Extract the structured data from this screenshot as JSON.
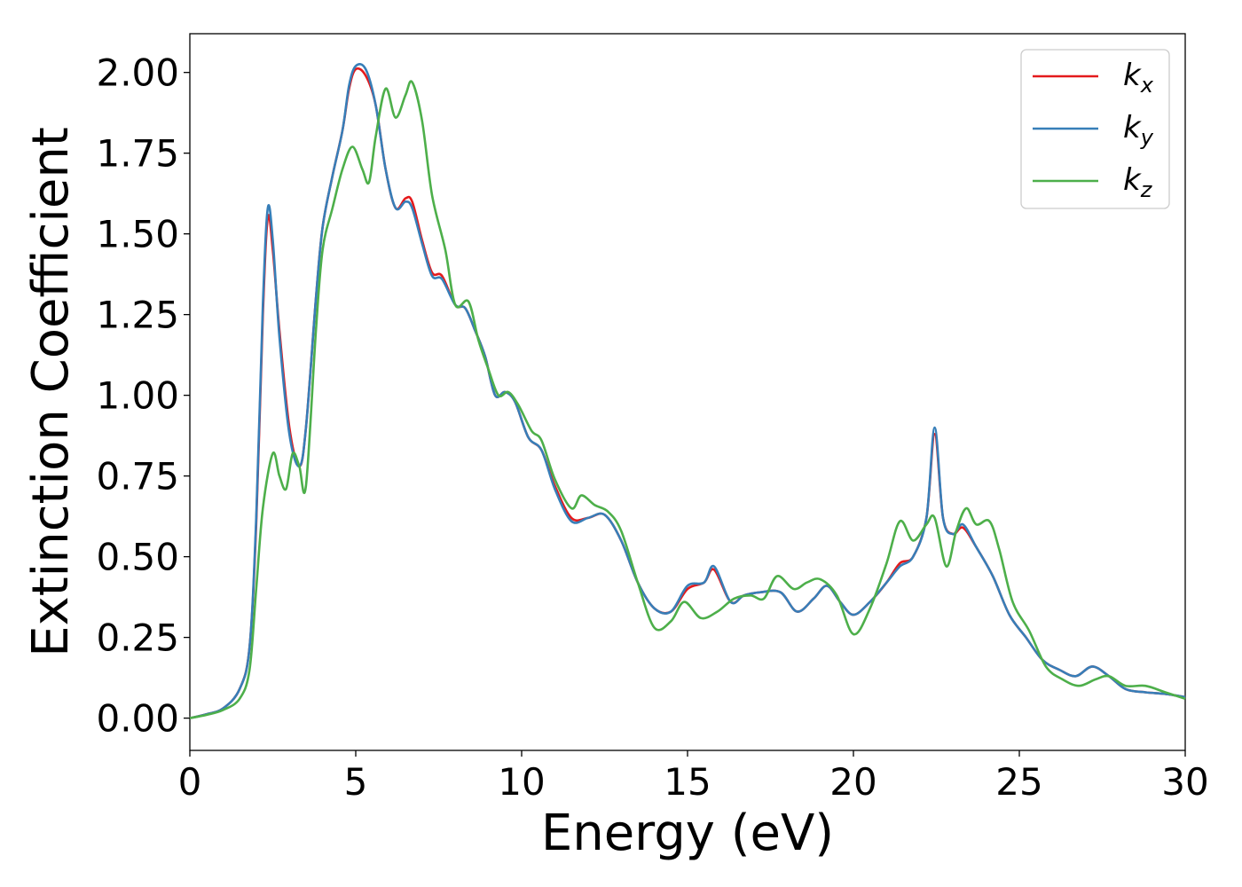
{
  "chart_data": {
    "type": "line",
    "title": "",
    "xlabel": "Energy (eV)",
    "ylabel": "Extinction Coefficient",
    "xlim": [
      0,
      30
    ],
    "ylim": [
      -0.1,
      2.12
    ],
    "xticks": [
      "0",
      "5",
      "10",
      "15",
      "20",
      "25",
      "30"
    ],
    "xtick_values": [
      0,
      5,
      10,
      15,
      20,
      25,
      30
    ],
    "yticks": [
      "0.00",
      "0.25",
      "0.50",
      "0.75",
      "1.00",
      "1.25",
      "1.50",
      "1.75",
      "2.00"
    ],
    "ytick_values": [
      0,
      0.25,
      0.5,
      0.75,
      1.0,
      1.25,
      1.5,
      1.75,
      2.0
    ],
    "grid": false,
    "legend_position": "top-right",
    "series": [
      {
        "name": "k_x",
        "label_main": "k",
        "label_sub": "x",
        "color": "#e41a1c",
        "points": [
          [
            0,
            0
          ],
          [
            0.5,
            0.012
          ],
          [
            1.0,
            0.03
          ],
          [
            1.5,
            0.09
          ],
          [
            1.8,
            0.22
          ],
          [
            2.0,
            0.6
          ],
          [
            2.2,
            1.25
          ],
          [
            2.35,
            1.55
          ],
          [
            2.5,
            1.45
          ],
          [
            2.7,
            1.2
          ],
          [
            3.0,
            0.9
          ],
          [
            3.3,
            0.78
          ],
          [
            3.5,
            0.9
          ],
          [
            3.8,
            1.3
          ],
          [
            4.0,
            1.52
          ],
          [
            4.3,
            1.68
          ],
          [
            4.6,
            1.82
          ],
          [
            4.8,
            1.95
          ],
          [
            5.0,
            2.01
          ],
          [
            5.3,
            1.99
          ],
          [
            5.6,
            1.9
          ],
          [
            5.9,
            1.7
          ],
          [
            6.2,
            1.58
          ],
          [
            6.5,
            1.61
          ],
          [
            6.7,
            1.6
          ],
          [
            7.0,
            1.48
          ],
          [
            7.3,
            1.38
          ],
          [
            7.6,
            1.37
          ],
          [
            8.0,
            1.28
          ],
          [
            8.3,
            1.27
          ],
          [
            8.6,
            1.2
          ],
          [
            8.9,
            1.12
          ],
          [
            9.2,
            1.0
          ],
          [
            9.5,
            1.01
          ],
          [
            9.8,
            0.98
          ],
          [
            10.2,
            0.87
          ],
          [
            10.6,
            0.83
          ],
          [
            11.0,
            0.72
          ],
          [
            11.5,
            0.62
          ],
          [
            12.0,
            0.62
          ],
          [
            12.5,
            0.63
          ],
          [
            13.0,
            0.55
          ],
          [
            13.5,
            0.42
          ],
          [
            14.0,
            0.34
          ],
          [
            14.5,
            0.33
          ],
          [
            15.0,
            0.4
          ],
          [
            15.5,
            0.42
          ],
          [
            15.8,
            0.46
          ],
          [
            16.3,
            0.36
          ],
          [
            16.7,
            0.38
          ],
          [
            17.2,
            0.39
          ],
          [
            17.8,
            0.39
          ],
          [
            18.3,
            0.33
          ],
          [
            18.8,
            0.37
          ],
          [
            19.2,
            0.41
          ],
          [
            19.6,
            0.36
          ],
          [
            20.0,
            0.32
          ],
          [
            20.5,
            0.36
          ],
          [
            21.0,
            0.42
          ],
          [
            21.4,
            0.48
          ],
          [
            21.8,
            0.5
          ],
          [
            22.2,
            0.62
          ],
          [
            22.45,
            0.88
          ],
          [
            22.7,
            0.62
          ],
          [
            23.0,
            0.57
          ],
          [
            23.3,
            0.59
          ],
          [
            23.7,
            0.53
          ],
          [
            24.2,
            0.44
          ],
          [
            24.7,
            0.32
          ],
          [
            25.2,
            0.25
          ],
          [
            25.7,
            0.18
          ],
          [
            26.2,
            0.15
          ],
          [
            26.7,
            0.13
          ],
          [
            27.2,
            0.16
          ],
          [
            27.7,
            0.13
          ],
          [
            28.2,
            0.09
          ],
          [
            28.8,
            0.08
          ],
          [
            29.4,
            0.075
          ],
          [
            30.0,
            0.065
          ]
        ]
      },
      {
        "name": "k_y",
        "label_main": "k",
        "label_sub": "y",
        "color": "#377eb8",
        "points": [
          [
            0,
            0
          ],
          [
            0.5,
            0.012
          ],
          [
            1.0,
            0.03
          ],
          [
            1.5,
            0.09
          ],
          [
            1.8,
            0.22
          ],
          [
            2.0,
            0.62
          ],
          [
            2.2,
            1.28
          ],
          [
            2.35,
            1.58
          ],
          [
            2.5,
            1.48
          ],
          [
            2.7,
            1.18
          ],
          [
            3.0,
            0.88
          ],
          [
            3.3,
            0.78
          ],
          [
            3.5,
            0.9
          ],
          [
            3.8,
            1.3
          ],
          [
            4.0,
            1.52
          ],
          [
            4.3,
            1.68
          ],
          [
            4.6,
            1.82
          ],
          [
            4.8,
            1.96
          ],
          [
            5.0,
            2.02
          ],
          [
            5.3,
            2.01
          ],
          [
            5.6,
            1.9
          ],
          [
            5.9,
            1.7
          ],
          [
            6.2,
            1.58
          ],
          [
            6.5,
            1.6
          ],
          [
            6.7,
            1.58
          ],
          [
            7.0,
            1.47
          ],
          [
            7.3,
            1.37
          ],
          [
            7.6,
            1.36
          ],
          [
            8.0,
            1.28
          ],
          [
            8.3,
            1.27
          ],
          [
            8.6,
            1.2
          ],
          [
            8.9,
            1.12
          ],
          [
            9.2,
            1.0
          ],
          [
            9.5,
            1.01
          ],
          [
            9.8,
            0.98
          ],
          [
            10.2,
            0.87
          ],
          [
            10.6,
            0.83
          ],
          [
            11.0,
            0.71
          ],
          [
            11.5,
            0.61
          ],
          [
            12.0,
            0.62
          ],
          [
            12.5,
            0.63
          ],
          [
            13.0,
            0.55
          ],
          [
            13.5,
            0.42
          ],
          [
            14.0,
            0.34
          ],
          [
            14.5,
            0.33
          ],
          [
            15.0,
            0.41
          ],
          [
            15.5,
            0.42
          ],
          [
            15.8,
            0.47
          ],
          [
            16.3,
            0.36
          ],
          [
            16.7,
            0.38
          ],
          [
            17.2,
            0.39
          ],
          [
            17.8,
            0.39
          ],
          [
            18.3,
            0.33
          ],
          [
            18.8,
            0.37
          ],
          [
            19.2,
            0.41
          ],
          [
            19.6,
            0.36
          ],
          [
            20.0,
            0.32
          ],
          [
            20.5,
            0.36
          ],
          [
            21.0,
            0.42
          ],
          [
            21.4,
            0.47
          ],
          [
            21.8,
            0.5
          ],
          [
            22.2,
            0.62
          ],
          [
            22.45,
            0.9
          ],
          [
            22.7,
            0.62
          ],
          [
            23.0,
            0.57
          ],
          [
            23.3,
            0.6
          ],
          [
            23.7,
            0.53
          ],
          [
            24.2,
            0.44
          ],
          [
            24.7,
            0.32
          ],
          [
            25.2,
            0.25
          ],
          [
            25.7,
            0.18
          ],
          [
            26.2,
            0.15
          ],
          [
            26.7,
            0.13
          ],
          [
            27.2,
            0.16
          ],
          [
            27.7,
            0.13
          ],
          [
            28.2,
            0.09
          ],
          [
            28.8,
            0.08
          ],
          [
            29.4,
            0.075
          ],
          [
            30.0,
            0.065
          ]
        ]
      },
      {
        "name": "k_z",
        "label_main": "k",
        "label_sub": "z",
        "color": "#4daf4a",
        "points": [
          [
            0,
            0
          ],
          [
            0.5,
            0.01
          ],
          [
            1.0,
            0.025
          ],
          [
            1.5,
            0.06
          ],
          [
            1.8,
            0.15
          ],
          [
            2.0,
            0.4
          ],
          [
            2.2,
            0.65
          ],
          [
            2.5,
            0.82
          ],
          [
            2.7,
            0.75
          ],
          [
            2.9,
            0.71
          ],
          [
            3.1,
            0.82
          ],
          [
            3.3,
            0.78
          ],
          [
            3.5,
            0.72
          ],
          [
            3.8,
            1.2
          ],
          [
            4.0,
            1.45
          ],
          [
            4.3,
            1.58
          ],
          [
            4.6,
            1.7
          ],
          [
            4.9,
            1.77
          ],
          [
            5.2,
            1.7
          ],
          [
            5.4,
            1.66
          ],
          [
            5.6,
            1.8
          ],
          [
            5.9,
            1.95
          ],
          [
            6.2,
            1.86
          ],
          [
            6.5,
            1.93
          ],
          [
            6.7,
            1.97
          ],
          [
            7.0,
            1.85
          ],
          [
            7.3,
            1.62
          ],
          [
            7.7,
            1.45
          ],
          [
            8.0,
            1.28
          ],
          [
            8.4,
            1.29
          ],
          [
            8.7,
            1.17
          ],
          [
            9.0,
            1.08
          ],
          [
            9.3,
            1.0
          ],
          [
            9.6,
            1.01
          ],
          [
            9.9,
            0.97
          ],
          [
            10.3,
            0.89
          ],
          [
            10.6,
            0.86
          ],
          [
            11.0,
            0.74
          ],
          [
            11.5,
            0.65
          ],
          [
            11.8,
            0.69
          ],
          [
            12.2,
            0.66
          ],
          [
            12.6,
            0.64
          ],
          [
            13.0,
            0.58
          ],
          [
            13.5,
            0.42
          ],
          [
            14.0,
            0.28
          ],
          [
            14.5,
            0.3
          ],
          [
            14.9,
            0.36
          ],
          [
            15.4,
            0.31
          ],
          [
            15.9,
            0.33
          ],
          [
            16.4,
            0.37
          ],
          [
            16.9,
            0.38
          ],
          [
            17.3,
            0.37
          ],
          [
            17.7,
            0.44
          ],
          [
            18.2,
            0.4
          ],
          [
            18.6,
            0.42
          ],
          [
            19.0,
            0.43
          ],
          [
            19.5,
            0.38
          ],
          [
            20.0,
            0.26
          ],
          [
            20.5,
            0.34
          ],
          [
            21.0,
            0.48
          ],
          [
            21.4,
            0.61
          ],
          [
            21.8,
            0.55
          ],
          [
            22.2,
            0.6
          ],
          [
            22.45,
            0.62
          ],
          [
            22.8,
            0.47
          ],
          [
            23.1,
            0.58
          ],
          [
            23.4,
            0.65
          ],
          [
            23.7,
            0.6
          ],
          [
            24.1,
            0.61
          ],
          [
            24.4,
            0.52
          ],
          [
            24.8,
            0.36
          ],
          [
            25.3,
            0.27
          ],
          [
            25.8,
            0.16
          ],
          [
            26.3,
            0.12
          ],
          [
            26.8,
            0.1
          ],
          [
            27.3,
            0.12
          ],
          [
            27.7,
            0.13
          ],
          [
            28.2,
            0.1
          ],
          [
            28.8,
            0.1
          ],
          [
            29.4,
            0.08
          ],
          [
            30.0,
            0.06
          ]
        ]
      }
    ]
  }
}
